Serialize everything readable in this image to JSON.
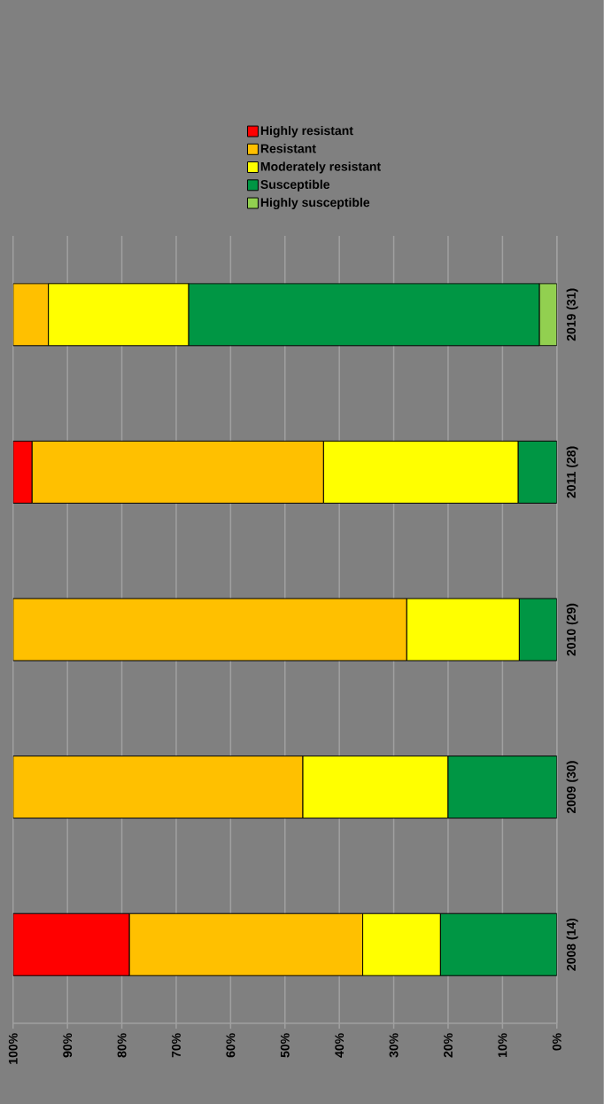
{
  "chart_data": {
    "type": "bar",
    "orientation": "horizontal",
    "stacked": true,
    "categories": [
      "2019 (31)",
      "2011 (28)",
      "2010 (29)",
      "2009 (30)",
      "2008 (14)"
    ],
    "series": [
      {
        "name": "Highly susceptible",
        "color": "#92d050",
        "values": [
          3.2,
          0,
          0,
          0,
          0
        ]
      },
      {
        "name": "Susceptible",
        "color": "#009644",
        "values": [
          64.5,
          7.1,
          6.9,
          20,
          21.4
        ]
      },
      {
        "name": "Moderately resistant",
        "color": "#ffff00",
        "values": [
          25.8,
          35.8,
          20.7,
          26.7,
          14.3
        ]
      },
      {
        "name": "Resistant",
        "color": "#ffc000",
        "values": [
          6.5,
          53.6,
          72.4,
          53.3,
          42.9
        ]
      },
      {
        "name": "Highly resistant",
        "color": "#ff0000",
        "values": [
          0,
          3.5,
          0,
          0,
          21.4
        ]
      }
    ],
    "xlim": [
      100,
      0
    ],
    "xticks": [
      {
        "value": 100,
        "label": "100%"
      },
      {
        "value": 90,
        "label": "90%"
      },
      {
        "value": 80,
        "label": "80%"
      },
      {
        "value": 70,
        "label": "70%"
      },
      {
        "value": 60,
        "label": "60%"
      },
      {
        "value": 50,
        "label": "50%"
      },
      {
        "value": 40,
        "label": "40%"
      },
      {
        "value": 30,
        "label": "30%"
      },
      {
        "value": 20,
        "label": "20%"
      },
      {
        "value": 10,
        "label": "10%"
      },
      {
        "value": 0,
        "label": "0%"
      }
    ],
    "grid": "x",
    "legend": "top"
  }
}
